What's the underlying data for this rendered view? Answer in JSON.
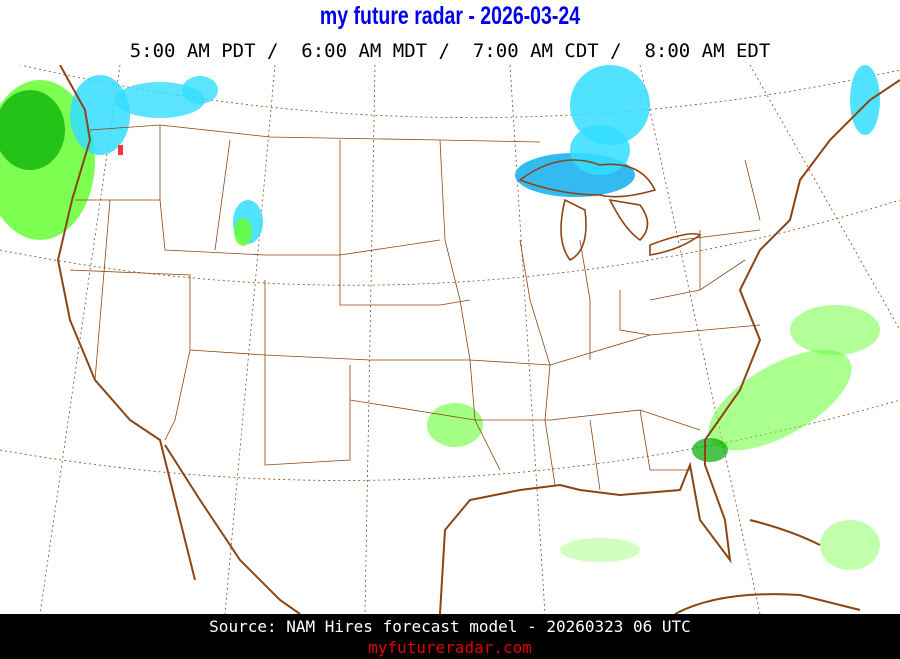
{
  "header": {
    "title": "my future radar - 2026-03-24",
    "times": "5:00 AM PDT /  6:00 AM MDT /  7:00 AM CDT /  8:00 AM EDT"
  },
  "map": {
    "region": "Continental United States",
    "layers": [
      "forecast-radar-reflectivity",
      "state-boundaries",
      "coastlines",
      "lat-lon-graticule"
    ],
    "colors": {
      "coast": "#8b4513",
      "state_lines": "#8b4513",
      "graticule": "#8b4513",
      "rain_light": "#66ff33",
      "rain_moderate": "#00aa00",
      "snow_light": "#33ddff",
      "snow_moderate": "#00aaee",
      "mix": "#ff3333"
    }
  },
  "footer": {
    "source": "Source: NAM Hires forecast model - 20260323 06 UTC",
    "site": "myfutureradar.com",
    "site_color": "#e00000"
  }
}
